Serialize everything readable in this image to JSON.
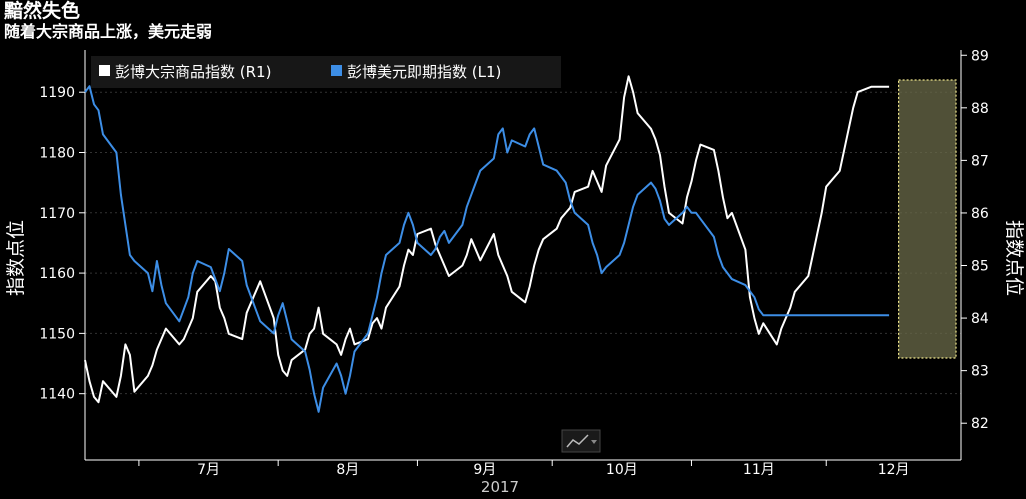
{
  "header": {
    "title": "黯然失色",
    "subtitle": "随着大宗商品上涨，美元走弱"
  },
  "chart_data": {
    "type": "line",
    "ylabel_left": "指数点位",
    "ylabel_right": "指数点位",
    "xlabel": "2017",
    "x_tick_labels": [
      "7月",
      "8月",
      "9月",
      "10月",
      "11月",
      "12月"
    ],
    "left_axis": {
      "ticks": [
        1140,
        1150,
        1160,
        1170,
        1180,
        1190
      ],
      "ylim": [
        1129,
        1197
      ]
    },
    "right_axis": {
      "ticks": [
        82,
        83,
        84,
        85,
        86,
        87,
        88,
        89
      ],
      "ylim": [
        81.3,
        89.1
      ]
    },
    "legend_placement": "top-left",
    "grid": true,
    "highlight": {
      "from": "2017-12-18",
      "to": "2017-12-29"
    },
    "series": [
      {
        "name": "彭博大宗商品指数 (R1)",
        "axis": "right",
        "color": "#ffffff",
        "points": [
          [
            "2017-06-19",
            83.2
          ],
          [
            "2017-06-20",
            82.8
          ],
          [
            "2017-06-21",
            82.5
          ],
          [
            "2017-06-22",
            82.4
          ],
          [
            "2017-06-23",
            82.8
          ],
          [
            "2017-06-26",
            82.5
          ],
          [
            "2017-06-27",
            82.9
          ],
          [
            "2017-06-28",
            83.5
          ],
          [
            "2017-06-29",
            83.3
          ],
          [
            "2017-06-30",
            82.6
          ],
          [
            "2017-07-03",
            82.9
          ],
          [
            "2017-07-04",
            83.1
          ],
          [
            "2017-07-05",
            83.4
          ],
          [
            "2017-07-06",
            83.6
          ],
          [
            "2017-07-07",
            83.8
          ],
          [
            "2017-07-10",
            83.5
          ],
          [
            "2017-07-11",
            83.6
          ],
          [
            "2017-07-12",
            83.8
          ],
          [
            "2017-07-13",
            84.0
          ],
          [
            "2017-07-14",
            84.5
          ],
          [
            "2017-07-17",
            84.8
          ],
          [
            "2017-07-18",
            84.7
          ],
          [
            "2017-07-19",
            84.2
          ],
          [
            "2017-07-20",
            84.0
          ],
          [
            "2017-07-21",
            83.7
          ],
          [
            "2017-07-24",
            83.6
          ],
          [
            "2017-07-25",
            84.1
          ],
          [
            "2017-07-26",
            84.3
          ],
          [
            "2017-07-27",
            84.5
          ],
          [
            "2017-07-28",
            84.7
          ],
          [
            "2017-07-31",
            84.0
          ],
          [
            "2017-08-01",
            83.3
          ],
          [
            "2017-08-02",
            83.0
          ],
          [
            "2017-08-03",
            82.9
          ],
          [
            "2017-08-04",
            83.2
          ],
          [
            "2017-08-07",
            83.4
          ],
          [
            "2017-08-08",
            83.7
          ],
          [
            "2017-08-09",
            83.8
          ],
          [
            "2017-08-10",
            84.2
          ],
          [
            "2017-08-11",
            83.7
          ],
          [
            "2017-08-14",
            83.5
          ],
          [
            "2017-08-15",
            83.3
          ],
          [
            "2017-08-16",
            83.6
          ],
          [
            "2017-08-17",
            83.8
          ],
          [
            "2017-08-18",
            83.5
          ],
          [
            "2017-08-21",
            83.6
          ],
          [
            "2017-08-22",
            83.9
          ],
          [
            "2017-08-23",
            84.0
          ],
          [
            "2017-08-24",
            83.8
          ],
          [
            "2017-08-25",
            84.2
          ],
          [
            "2017-08-28",
            84.6
          ],
          [
            "2017-08-29",
            85.0
          ],
          [
            "2017-08-30",
            85.3
          ],
          [
            "2017-08-31",
            85.2
          ],
          [
            "2017-09-01",
            85.6
          ],
          [
            "2017-09-04",
            85.7
          ],
          [
            "2017-09-05",
            85.4
          ],
          [
            "2017-09-06",
            85.2
          ],
          [
            "2017-09-07",
            85.0
          ],
          [
            "2017-09-08",
            84.8
          ],
          [
            "2017-09-11",
            85.0
          ],
          [
            "2017-09-12",
            85.2
          ],
          [
            "2017-09-13",
            85.5
          ],
          [
            "2017-09-14",
            85.3
          ],
          [
            "2017-09-15",
            85.1
          ],
          [
            "2017-09-18",
            85.6
          ],
          [
            "2017-09-19",
            85.2
          ],
          [
            "2017-09-20",
            85.0
          ],
          [
            "2017-09-21",
            84.8
          ],
          [
            "2017-09-22",
            84.5
          ],
          [
            "2017-09-25",
            84.3
          ],
          [
            "2017-09-26",
            84.6
          ],
          [
            "2017-09-27",
            85.0
          ],
          [
            "2017-09-28",
            85.3
          ],
          [
            "2017-09-29",
            85.5
          ],
          [
            "2017-10-02",
            85.7
          ],
          [
            "2017-10-03",
            85.9
          ],
          [
            "2017-10-04",
            86.0
          ],
          [
            "2017-10-05",
            86.1
          ],
          [
            "2017-10-06",
            86.4
          ],
          [
            "2017-10-09",
            86.5
          ],
          [
            "2017-10-10",
            86.8
          ],
          [
            "2017-10-11",
            86.6
          ],
          [
            "2017-10-12",
            86.4
          ],
          [
            "2017-10-13",
            86.9
          ],
          [
            "2017-10-16",
            87.4
          ],
          [
            "2017-10-17",
            88.2
          ],
          [
            "2017-10-18",
            88.6
          ],
          [
            "2017-10-19",
            88.3
          ],
          [
            "2017-10-20",
            87.9
          ],
          [
            "2017-10-23",
            87.6
          ],
          [
            "2017-10-24",
            87.4
          ],
          [
            "2017-10-25",
            87.1
          ],
          [
            "2017-10-26",
            86.5
          ],
          [
            "2017-10-27",
            86.0
          ],
          [
            "2017-10-30",
            85.8
          ],
          [
            "2017-10-31",
            86.3
          ],
          [
            "2017-11-01",
            86.6
          ],
          [
            "2017-11-02",
            87.0
          ],
          [
            "2017-11-03",
            87.3
          ],
          [
            "2017-11-06",
            87.2
          ],
          [
            "2017-11-07",
            86.8
          ],
          [
            "2017-11-08",
            86.3
          ],
          [
            "2017-11-09",
            85.9
          ],
          [
            "2017-11-10",
            86.0
          ],
          [
            "2017-11-13",
            85.3
          ],
          [
            "2017-11-14",
            84.4
          ],
          [
            "2017-11-15",
            84.0
          ],
          [
            "2017-11-16",
            83.7
          ],
          [
            "2017-11-17",
            83.9
          ],
          [
            "2017-11-20",
            83.5
          ],
          [
            "2017-11-21",
            83.8
          ],
          [
            "2017-11-22",
            84.0
          ],
          [
            "2017-11-23",
            84.2
          ],
          [
            "2017-11-24",
            84.5
          ],
          [
            "2017-11-27",
            84.8
          ],
          [
            "2017-11-28",
            85.2
          ],
          [
            "2017-11-29",
            85.6
          ],
          [
            "2017-11-30",
            86.0
          ],
          [
            "2017-12-01",
            86.5
          ],
          [
            "2017-12-04",
            86.8
          ],
          [
            "2017-12-05",
            87.2
          ],
          [
            "2017-12-06",
            87.6
          ],
          [
            "2017-12-07",
            88.0
          ],
          [
            "2017-12-08",
            88.3
          ],
          [
            "2017-12-11",
            88.4
          ],
          [
            "2017-12-12",
            88.4
          ],
          [
            "2017-12-13",
            88.4
          ],
          [
            "2017-12-14",
            88.4
          ],
          [
            "2017-12-15",
            88.4
          ]
        ]
      },
      {
        "name": "彭博美元即期指数 (L1)",
        "axis": "left",
        "color": "#3d8ee6",
        "points": [
          [
            "2017-06-19",
            1190
          ],
          [
            "2017-06-20",
            1191
          ],
          [
            "2017-06-21",
            1188
          ],
          [
            "2017-06-22",
            1187
          ],
          [
            "2017-06-23",
            1183
          ],
          [
            "2017-06-26",
            1180
          ],
          [
            "2017-06-27",
            1173
          ],
          [
            "2017-06-28",
            1168
          ],
          [
            "2017-06-29",
            1163
          ],
          [
            "2017-06-30",
            1162
          ],
          [
            "2017-07-03",
            1160
          ],
          [
            "2017-07-04",
            1157
          ],
          [
            "2017-07-05",
            1162
          ],
          [
            "2017-07-06",
            1158
          ],
          [
            "2017-07-07",
            1155
          ],
          [
            "2017-07-10",
            1152
          ],
          [
            "2017-07-11",
            1154
          ],
          [
            "2017-07-12",
            1156
          ],
          [
            "2017-07-13",
            1160
          ],
          [
            "2017-07-14",
            1162
          ],
          [
            "2017-07-17",
            1161
          ],
          [
            "2017-07-18",
            1159
          ],
          [
            "2017-07-19",
            1157
          ],
          [
            "2017-07-20",
            1160
          ],
          [
            "2017-07-21",
            1164
          ],
          [
            "2017-07-24",
            1162
          ],
          [
            "2017-07-25",
            1158
          ],
          [
            "2017-07-26",
            1156
          ],
          [
            "2017-07-27",
            1154
          ],
          [
            "2017-07-28",
            1152
          ],
          [
            "2017-07-31",
            1150
          ],
          [
            "2017-08-01",
            1153
          ],
          [
            "2017-08-02",
            1155
          ],
          [
            "2017-08-03",
            1152
          ],
          [
            "2017-08-04",
            1149
          ],
          [
            "2017-08-07",
            1147
          ],
          [
            "2017-08-08",
            1144
          ],
          [
            "2017-08-09",
            1140
          ],
          [
            "2017-08-10",
            1137
          ],
          [
            "2017-08-11",
            1141
          ],
          [
            "2017-08-14",
            1145
          ],
          [
            "2017-08-15",
            1143
          ],
          [
            "2017-08-16",
            1140
          ],
          [
            "2017-08-17",
            1143
          ],
          [
            "2017-08-18",
            1147
          ],
          [
            "2017-08-21",
            1150
          ],
          [
            "2017-08-22",
            1153
          ],
          [
            "2017-08-23",
            1156
          ],
          [
            "2017-08-24",
            1160
          ],
          [
            "2017-08-25",
            1163
          ],
          [
            "2017-08-28",
            1165
          ],
          [
            "2017-08-29",
            1168
          ],
          [
            "2017-08-30",
            1170
          ],
          [
            "2017-08-31",
            1168
          ],
          [
            "2017-09-01",
            1165
          ],
          [
            "2017-09-04",
            1163
          ],
          [
            "2017-09-05",
            1164
          ],
          [
            "2017-09-06",
            1166
          ],
          [
            "2017-09-07",
            1167
          ],
          [
            "2017-09-08",
            1165
          ],
          [
            "2017-09-11",
            1168
          ],
          [
            "2017-09-12",
            1171
          ],
          [
            "2017-09-13",
            1173
          ],
          [
            "2017-09-14",
            1175
          ],
          [
            "2017-09-15",
            1177
          ],
          [
            "2017-09-18",
            1179
          ],
          [
            "2017-09-19",
            1183
          ],
          [
            "2017-09-20",
            1184
          ],
          [
            "2017-09-21",
            1180
          ],
          [
            "2017-09-22",
            1182
          ],
          [
            "2017-09-25",
            1181
          ],
          [
            "2017-09-26",
            1183
          ],
          [
            "2017-09-27",
            1184
          ],
          [
            "2017-09-28",
            1181
          ],
          [
            "2017-09-29",
            1178
          ],
          [
            "2017-10-02",
            1177
          ],
          [
            "2017-10-03",
            1176
          ],
          [
            "2017-10-04",
            1175
          ],
          [
            "2017-10-05",
            1172
          ],
          [
            "2017-10-06",
            1170
          ],
          [
            "2017-10-09",
            1168
          ],
          [
            "2017-10-10",
            1165
          ],
          [
            "2017-10-11",
            1163
          ],
          [
            "2017-10-12",
            1160
          ],
          [
            "2017-10-13",
            1161
          ],
          [
            "2017-10-16",
            1163
          ],
          [
            "2017-10-17",
            1165
          ],
          [
            "2017-10-18",
            1168
          ],
          [
            "2017-10-19",
            1171
          ],
          [
            "2017-10-20",
            1173
          ],
          [
            "2017-10-23",
            1175
          ],
          [
            "2017-10-24",
            1174
          ],
          [
            "2017-10-25",
            1172
          ],
          [
            "2017-10-26",
            1169
          ],
          [
            "2017-10-27",
            1168
          ],
          [
            "2017-10-30",
            1170
          ],
          [
            "2017-10-31",
            1171
          ],
          [
            "2017-11-01",
            1170
          ],
          [
            "2017-11-02",
            1170
          ],
          [
            "2017-11-03",
            1169
          ],
          [
            "2017-11-06",
            1166
          ],
          [
            "2017-11-07",
            1163
          ],
          [
            "2017-11-08",
            1161
          ],
          [
            "2017-11-09",
            1160
          ],
          [
            "2017-11-10",
            1159
          ],
          [
            "2017-11-13",
            1158
          ],
          [
            "2017-11-14",
            1157
          ],
          [
            "2017-11-15",
            1156
          ],
          [
            "2017-11-16",
            1154
          ],
          [
            "2017-11-17",
            1153
          ],
          [
            "2017-11-20",
            1153
          ],
          [
            "2017-11-21",
            1153
          ],
          [
            "2017-11-22",
            1153
          ],
          [
            "2017-11-23",
            1153
          ],
          [
            "2017-11-24",
            1153
          ],
          [
            "2017-11-27",
            1153
          ],
          [
            "2017-11-28",
            1153
          ],
          [
            "2017-11-29",
            1153
          ],
          [
            "2017-11-30",
            1153
          ],
          [
            "2017-12-01",
            1153
          ],
          [
            "2017-12-04",
            1153
          ],
          [
            "2017-12-05",
            1153
          ],
          [
            "2017-12-06",
            1153
          ],
          [
            "2017-12-07",
            1153
          ],
          [
            "2017-12-08",
            1153
          ],
          [
            "2017-12-11",
            1153
          ],
          [
            "2017-12-12",
            1153
          ],
          [
            "2017-12-13",
            1153
          ],
          [
            "2017-12-14",
            1153
          ],
          [
            "2017-12-15",
            1153
          ]
        ]
      }
    ]
  }
}
